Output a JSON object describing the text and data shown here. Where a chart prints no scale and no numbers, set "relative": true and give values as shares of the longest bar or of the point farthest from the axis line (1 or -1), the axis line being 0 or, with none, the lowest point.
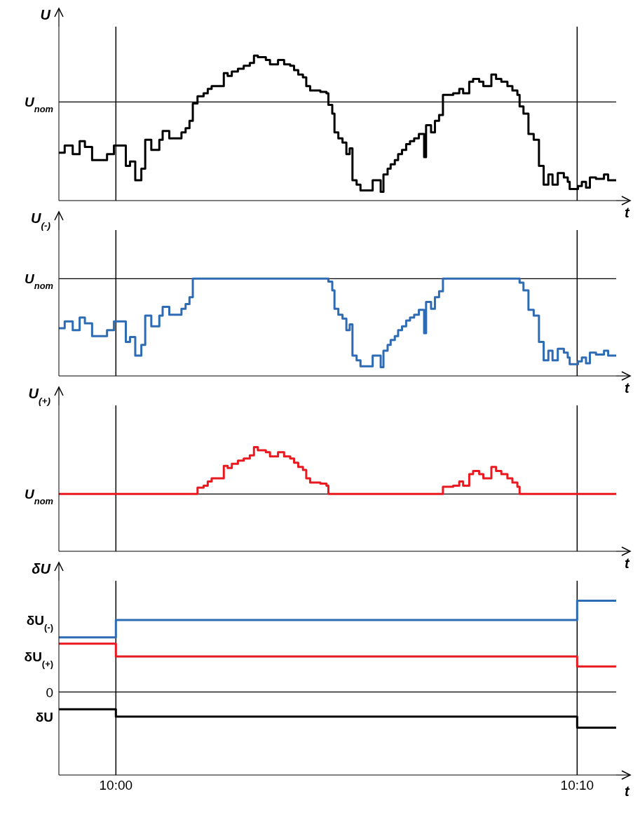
{
  "chart_data": [
    {
      "type": "step",
      "ylabel": "U",
      "xlabel": "t",
      "relative": true,
      "tick_labels": false,
      "xlim": [
        9.9794,
        10.1808
      ],
      "x": [
        9.9794,
        9.9815,
        9.9844,
        9.9869,
        9.9888,
        9.9914,
        9.9968,
        9.9993,
        10.0036,
        10.0051,
        10.007,
        10.0092,
        10.0106,
        10.0128,
        10.0157,
        10.0169,
        10.0193,
        10.0237,
        10.0252,
        10.0266,
        10.0278,
        10.0295,
        10.0317,
        10.0332,
        10.0346,
        10.039,
        10.0404,
        10.0419,
        10.0441,
        10.0462,
        10.0484,
        10.0499,
        10.0513,
        10.0542,
        10.0557,
        10.0586,
        10.0608,
        10.063,
        10.0644,
        10.0659,
        10.0676,
        10.0688,
        10.0702,
        10.0739,
        10.0761,
        10.0768,
        10.0782,
        10.079,
        10.0804,
        10.0819,
        10.0833,
        10.0845,
        10.0855,
        10.087,
        10.0884,
        10.0928,
        10.0957,
        10.0967,
        10.0982,
        10.0993,
        10.1008,
        10.102,
        10.1034,
        10.1049,
        10.1063,
        10.1078,
        10.1095,
        10.1114,
        10.1121,
        10.1139,
        10.1153,
        10.1168,
        10.1182,
        10.1219,
        10.1241,
        10.1255,
        10.1277,
        10.1291,
        10.1313,
        10.1328,
        10.1357,
        10.1374,
        10.1393,
        10.1415,
        10.1433,
        10.1451,
        10.1459,
        10.1473,
        10.1491,
        10.151,
        10.1529,
        10.1546,
        10.1563,
        10.1578,
        10.1597,
        10.1619,
        10.1633,
        10.164,
        10.167,
        10.1684,
        10.1699,
        10.1713,
        10.1735,
        10.1764,
        10.1779,
        10.1808
      ],
      "series": [
        {
          "color": "#000000",
          "values": [
            0.33,
            0.38,
            0.32,
            0.41,
            0.37,
            0.28,
            0.32,
            0.38,
            0.24,
            0.27,
            0.14,
            0.22,
            0.42,
            0.35,
            0.42,
            0.48,
            0.43,
            0.47,
            0.5,
            0.55,
            0.67,
            0.72,
            0.74,
            0.77,
            0.79,
            0.88,
            0.86,
            0.89,
            0.91,
            0.93,
            0.95,
            1,
            0.99,
            0.97,
            0.94,
            0.97,
            0.94,
            0.93,
            0.9,
            0.87,
            0.85,
            0.79,
            0.76,
            0.75,
            0.74,
            0.66,
            0.6,
            0.47,
            0.43,
            0.4,
            0.32,
            0.36,
            0.14,
            0.11,
            0.07,
            0.14,
            0.06,
            0.18,
            0.22,
            0.25,
            0.28,
            0.32,
            0.35,
            0.39,
            0.41,
            0.43,
            0.46,
            0.3,
            0.52,
            0.47,
            0.55,
            0.59,
            0.73,
            0.74,
            0.77,
            0.74,
            0.82,
            0.84,
            0.82,
            0.79,
            0.87,
            0.84,
            0.82,
            0.79,
            0.76,
            0.73,
            0.65,
            0.6,
            0.46,
            0.42,
            0.24,
            0.11,
            0.18,
            0.11,
            0.19,
            0.16,
            0.13,
            0.08,
            0.1,
            0.13,
            0.09,
            0.16,
            0.15,
            0.18,
            0.14,
            0.14
          ]
        }
      ],
      "ref_lines": [
        {
          "axis": "y",
          "value": 0.68,
          "label": "U$_{nom}$"
        },
        {
          "axis": "x",
          "value": 10.0,
          "label": null
        },
        {
          "axis": "x",
          "value": 10.1667,
          "label": null
        }
      ]
    },
    {
      "type": "step",
      "ylabel": "U$_{(-)}$",
      "xlabel": "t",
      "relative": true,
      "tick_labels": false,
      "xlim": [
        9.9794,
        10.1808
      ],
      "x": [
        9.9794,
        9.9815,
        9.9844,
        9.9869,
        9.9888,
        9.9914,
        9.9968,
        9.9993,
        10.0036,
        10.0051,
        10.007,
        10.0092,
        10.0106,
        10.0128,
        10.0157,
        10.0169,
        10.0193,
        10.0237,
        10.0252,
        10.0266,
        10.0278,
        10.0768,
        10.0782,
        10.079,
        10.0804,
        10.0819,
        10.0833,
        10.0845,
        10.0855,
        10.087,
        10.0884,
        10.0928,
        10.0957,
        10.0967,
        10.0982,
        10.0993,
        10.1008,
        10.102,
        10.1034,
        10.1049,
        10.1063,
        10.1078,
        10.1095,
        10.1114,
        10.1121,
        10.1139,
        10.1153,
        10.1168,
        10.1182,
        10.1459,
        10.1473,
        10.1491,
        10.151,
        10.1529,
        10.1546,
        10.1563,
        10.1578,
        10.1597,
        10.1619,
        10.1633,
        10.164,
        10.167,
        10.1684,
        10.1699,
        10.1713,
        10.1735,
        10.1764,
        10.1779,
        10.1808
      ],
      "series": [
        {
          "color": "#2e6bb5",
          "values": [
            0.49,
            0.56,
            0.47,
            0.6,
            0.54,
            0.41,
            0.47,
            0.56,
            0.35,
            0.4,
            0.21,
            0.32,
            0.62,
            0.51,
            0.62,
            0.71,
            0.63,
            0.69,
            0.74,
            0.81,
            1,
            0.97,
            0.88,
            0.69,
            0.63,
            0.59,
            0.47,
            0.53,
            0.21,
            0.16,
            0.1,
            0.21,
            0.09,
            0.26,
            0.32,
            0.37,
            0.41,
            0.47,
            0.51,
            0.57,
            0.6,
            0.63,
            0.68,
            0.44,
            0.76,
            0.69,
            0.81,
            0.87,
            1,
            0.96,
            0.88,
            0.68,
            0.62,
            0.35,
            0.16,
            0.26,
            0.16,
            0.28,
            0.24,
            0.19,
            0.12,
            0.15,
            0.19,
            0.13,
            0.24,
            0.22,
            0.26,
            0.21,
            0.21
          ]
        }
      ],
      "ref_lines": [
        {
          "axis": "y",
          "value": 1,
          "label": "U$_{nom}$"
        },
        {
          "axis": "x",
          "value": 10.0,
          "label": null
        },
        {
          "axis": "x",
          "value": 10.1667,
          "label": null
        }
      ]
    },
    {
      "type": "step",
      "ylabel": "U$_{(+)}$",
      "xlabel": "t",
      "relative": true,
      "tick_labels": false,
      "xlim": [
        9.9794,
        10.1808
      ],
      "x": [
        9.9794,
        10.0295,
        10.0317,
        10.0332,
        10.0346,
        10.039,
        10.0404,
        10.0419,
        10.0441,
        10.0462,
        10.0484,
        10.0499,
        10.0513,
        10.0542,
        10.0557,
        10.0586,
        10.0608,
        10.063,
        10.0644,
        10.0659,
        10.0676,
        10.0688,
        10.0702,
        10.0739,
        10.0761,
        10.0768,
        10.1182,
        10.1219,
        10.1241,
        10.1255,
        10.1277,
        10.1291,
        10.1313,
        10.1328,
        10.1357,
        10.1374,
        10.1393,
        10.1415,
        10.1433,
        10.1451,
        10.1459,
        10.1808
      ],
      "series": [
        {
          "color": "#e8191f",
          "values": [
            0.55,
            0.61,
            0.63,
            0.67,
            0.7,
            0.82,
            0.8,
            0.84,
            0.87,
            0.89,
            0.92,
            1,
            0.97,
            0.95,
            0.91,
            0.95,
            0.91,
            0.89,
            0.85,
            0.81,
            0.78,
            0.7,
            0.66,
            0.65,
            0.63,
            0.55,
            0.62,
            0.63,
            0.67,
            0.63,
            0.74,
            0.77,
            0.74,
            0.7,
            0.81,
            0.77,
            0.74,
            0.7,
            0.66,
            0.62,
            0.55,
            0.55
          ]
        }
      ],
      "ref_lines": [
        {
          "axis": "y",
          "value": 0.55,
          "label": "U$_{nom}$"
        },
        {
          "axis": "x",
          "value": 10.0,
          "label": null
        },
        {
          "axis": "x",
          "value": 10.1667,
          "label": null
        }
      ]
    },
    {
      "type": "step",
      "ylabel": "δU",
      "xlabel": "t",
      "relative": true,
      "tick_labels": "x",
      "xlim": [
        9.9794,
        10.1808
      ],
      "xticks": [
        {
          "value": 10.0,
          "label": "10:00"
        },
        {
          "value": 10.1667,
          "label": "10:10"
        }
      ],
      "x": [
        9.9794,
        10.0,
        10.1667,
        10.1808
      ],
      "series": [
        {
          "name": "δU$_{(-)}$",
          "color": "#2e6bb5",
          "values": [
            0.6,
            0.79,
            1,
            1
          ]
        },
        {
          "name": "δU$_{(+)}$",
          "color": "#e8191f",
          "values": [
            0.53,
            0.39,
            0.28,
            0.28
          ]
        },
        {
          "name": "δU",
          "color": "#000000",
          "values": [
            -0.19,
            -0.27,
            -0.39,
            -0.39
          ]
        }
      ],
      "ref_lines": [
        {
          "axis": "y",
          "value": 0,
          "label": "0"
        },
        {
          "axis": "x",
          "value": 10.0,
          "label": null
        },
        {
          "axis": "x",
          "value": 10.1667,
          "label": null
        }
      ]
    }
  ]
}
